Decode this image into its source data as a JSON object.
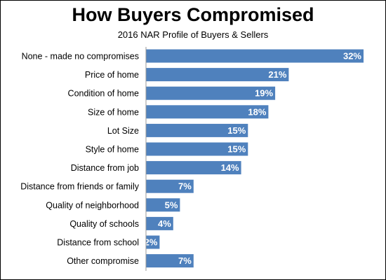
{
  "chart_data": {
    "type": "bar",
    "orientation": "horizontal",
    "title": "How Buyers Compromised",
    "subtitle": "2016 NAR Profile of Buyers & Sellers",
    "categories": [
      "None - made no compromises",
      "Price of home",
      "Condition of home",
      "Size of home",
      "Lot Size",
      "Style of home",
      "Distance from job",
      "Distance from friends or family",
      "Quality of neighborhood",
      "Quality of schools",
      "Distance from school",
      "Other compromise"
    ],
    "values": [
      32,
      21,
      19,
      18,
      15,
      15,
      14,
      7,
      5,
      4,
      2,
      7
    ],
    "value_labels": [
      "32%",
      "21%",
      "19%",
      "18%",
      "15%",
      "15%",
      "14%",
      "7%",
      "5%",
      "4%",
      "2%",
      "7%"
    ],
    "xlim": [
      0,
      32
    ],
    "grid": false,
    "legend": "none",
    "bar_color": "#4F81BD",
    "label_color": "#FFFFFF"
  }
}
